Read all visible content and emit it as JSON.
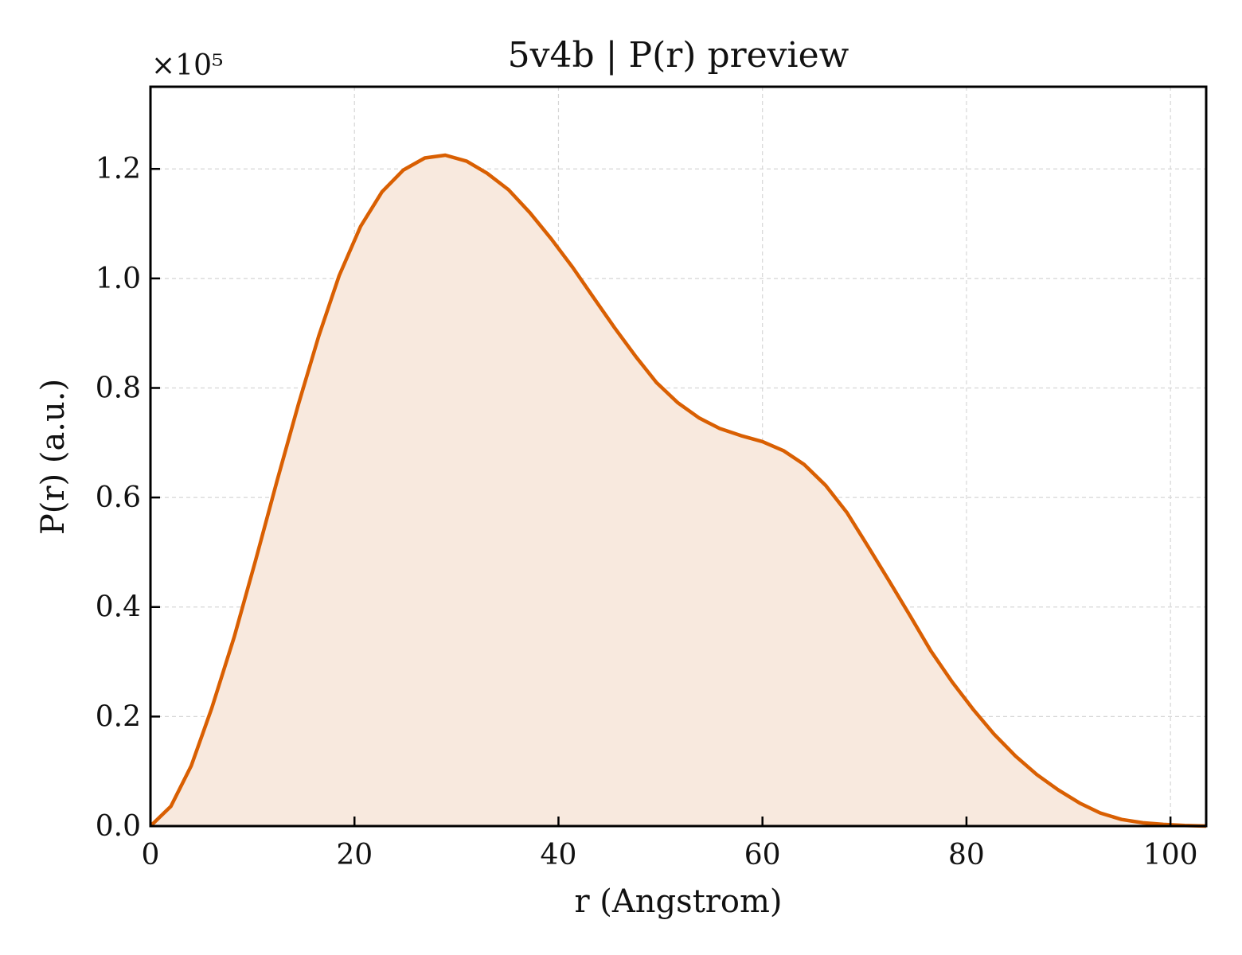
{
  "chart_data": {
    "type": "area",
    "title": "5v4b | P(r) preview",
    "xlabel": "r (Angstrom)",
    "ylabel": "P(r) (a.u.)",
    "y_multiplier_label": "×10⁵",
    "xlim": [
      0,
      103.5
    ],
    "ylim": [
      0,
      1.35
    ],
    "xticks": [
      0,
      20,
      40,
      60,
      80,
      100
    ],
    "yticks": [
      0.0,
      0.2,
      0.4,
      0.6,
      0.8,
      1.0,
      1.2
    ],
    "xtick_labels": [
      "0",
      "20",
      "40",
      "60",
      "80",
      "100"
    ],
    "ytick_labels": [
      "0.0",
      "0.2",
      "0.4",
      "0.6",
      "0.8",
      "1.0",
      "1.2"
    ],
    "grid": true,
    "line_color": "#d95f02",
    "fill_color": "#f8e9de",
    "series": [
      {
        "x": [
          0,
          2,
          4,
          6,
          8.2,
          10.3,
          12.4,
          14.5,
          16.5,
          18.5,
          20.6,
          22.7,
          24.8,
          26.9,
          28.9,
          31,
          33,
          35.1,
          37.2,
          39.3,
          41.4,
          43.4,
          45.5,
          47.6,
          49.6,
          51.7,
          53.8,
          55.8,
          57.9,
          60,
          62.1,
          64.1,
          66.2,
          68.3,
          70.3,
          72.4,
          74.5,
          76.5,
          78.6,
          80.7,
          82.7,
          84.8,
          86.9,
          89,
          91.1,
          93.1,
          95.2,
          97.3,
          99.3,
          101.4,
          103.5
        ],
        "y": [
          0.0,
          0.036,
          0.11,
          0.215,
          0.345,
          0.485,
          0.63,
          0.77,
          0.895,
          1.005,
          1.095,
          1.158,
          1.198,
          1.22,
          1.225,
          1.214,
          1.192,
          1.162,
          1.12,
          1.072,
          1.02,
          0.966,
          0.91,
          0.857,
          0.81,
          0.773,
          0.745,
          0.726,
          0.713,
          0.702,
          0.685,
          0.66,
          0.622,
          0.572,
          0.512,
          0.448,
          0.383,
          0.32,
          0.263,
          0.212,
          0.168,
          0.128,
          0.094,
          0.066,
          0.042,
          0.024,
          0.012,
          0.006,
          0.003,
          0.001,
          0.0
        ]
      }
    ]
  }
}
